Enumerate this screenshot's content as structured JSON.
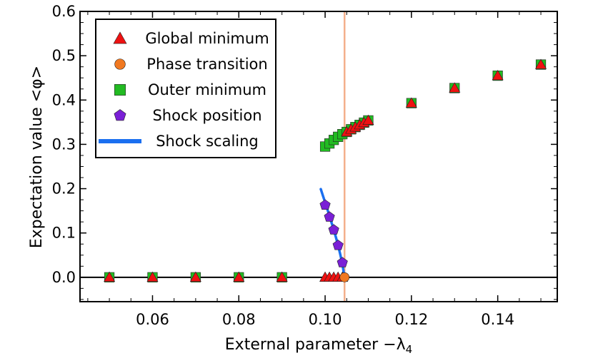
{
  "chart_data": {
    "type": "scatter",
    "xlabel": "External parameter −λ",
    "xlabel_subscript": "4",
    "ylabel": "Expectation value  <φ>",
    "xlim": [
      0.0432,
      0.1538
    ],
    "ylim": [
      -0.055,
      0.6
    ],
    "xticks": [
      0.06,
      0.08,
      0.1,
      0.12,
      0.14
    ],
    "xtick_labels": [
      "0.06",
      "0.08",
      "0.10",
      "0.12",
      "0.14"
    ],
    "yticks": [
      0.0,
      0.1,
      0.2,
      0.3,
      0.4,
      0.5,
      0.6
    ],
    "ytick_labels": [
      "0.0",
      "0.1",
      "0.2",
      "0.3",
      "0.4",
      "0.5",
      "0.6"
    ],
    "legend_position": "top-left",
    "zero_line": true,
    "transition_line": {
      "x": 0.1045,
      "color": "#f4b08c"
    },
    "series": [
      {
        "name": "Global minimum",
        "marker": "triangle",
        "color": "#ee1111",
        "x": [
          0.05,
          0.06,
          0.07,
          0.08,
          0.09,
          0.1,
          0.101,
          0.102,
          0.103,
          0.104,
          0.105,
          0.106,
          0.107,
          0.108,
          0.109,
          0.11,
          0.12,
          0.13,
          0.14,
          0.15
        ],
        "y": [
          0,
          0,
          0,
          0,
          0,
          0,
          0,
          0,
          0,
          0,
          0.328,
          0.334,
          0.339,
          0.344,
          0.349,
          0.354,
          0.393,
          0.427,
          0.455,
          0.48
        ]
      },
      {
        "name": "Phase transition",
        "marker": "circle",
        "color": "#f07820",
        "x": [
          0.1045
        ],
        "y": [
          0
        ]
      },
      {
        "name": "Outer minimum",
        "marker": "square",
        "color": "#22bb22",
        "x": [
          0.05,
          0.06,
          0.07,
          0.08,
          0.09,
          0.1,
          0.101,
          0.102,
          0.103,
          0.104,
          0.105,
          0.106,
          0.107,
          0.108,
          0.109,
          0.11,
          0.12,
          0.13,
          0.14,
          0.15
        ],
        "y": [
          0,
          0,
          0,
          0,
          0,
          0.295,
          0.302,
          0.31,
          0.317,
          0.323,
          0.328,
          0.334,
          0.339,
          0.344,
          0.349,
          0.354,
          0.393,
          0.427,
          0.455,
          0.48
        ]
      },
      {
        "name": "Shock position",
        "marker": "pentagon",
        "color": "#7a1fd6",
        "x": [
          0.1,
          0.101,
          0.102,
          0.103,
          0.104
        ],
        "y": [
          0.163,
          0.136,
          0.107,
          0.072,
          0.033
        ]
      },
      {
        "name": "Shock scaling",
        "marker": "line",
        "color": "#1a6ff0",
        "x": [
          0.099,
          0.0995,
          0.1,
          0.1005,
          0.101,
          0.1015,
          0.102,
          0.1025,
          0.103,
          0.1035,
          0.104,
          0.1045
        ],
        "y": [
          0.199,
          0.184,
          0.169,
          0.154,
          0.139,
          0.123,
          0.107,
          0.09,
          0.072,
          0.052,
          0.03,
          0.0
        ]
      }
    ]
  }
}
